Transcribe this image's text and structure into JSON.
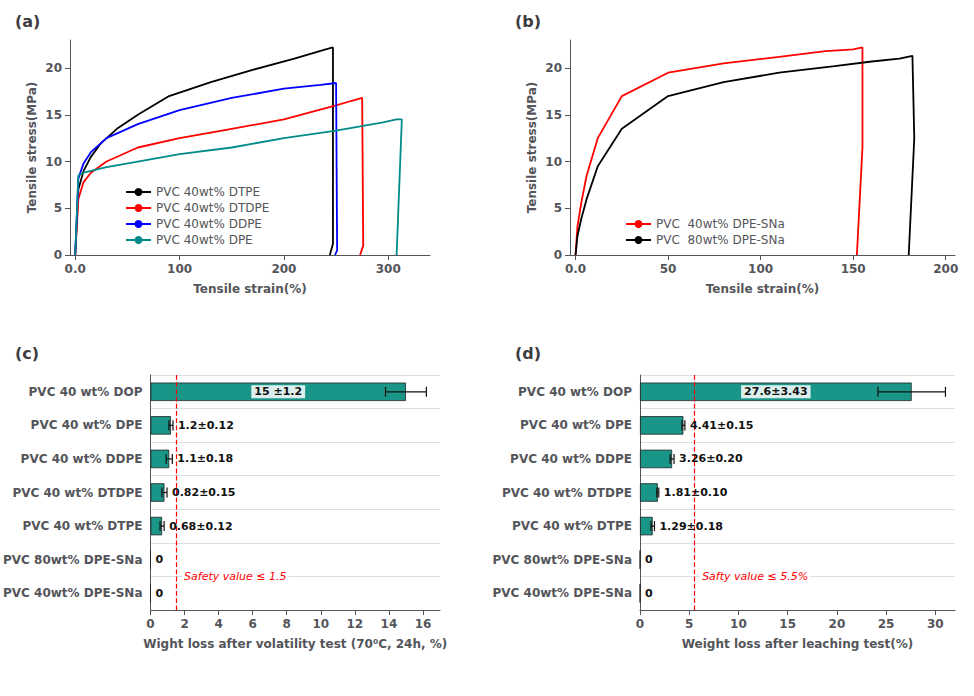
{
  "chart_data": [
    {
      "type": "line",
      "title": "(a)",
      "xlabel": "Tensile strain(%)",
      "ylabel": "Tensile stress(MPa)",
      "series": [
        {
          "name": "PVC 40wt% DTPE",
          "color": "black",
          "x": [
            0,
            3,
            8,
            15,
            25,
            40,
            60,
            90,
            130,
            170,
            210,
            240,
            247,
            247,
            244
          ],
          "values": [
            0,
            7.0,
            9.0,
            10.5,
            12.0,
            13.5,
            15.0,
            17.0,
            18.5,
            19.8,
            21.0,
            22.0,
            22.2,
            1.2,
            0
          ]
        },
        {
          "name": "PVC 40wt% DTDPE",
          "color": "red",
          "x": [
            0,
            3,
            8,
            15,
            30,
            60,
            100,
            150,
            200,
            250,
            265,
            275,
            276,
            273
          ],
          "values": [
            0,
            6.0,
            7.8,
            8.8,
            10.0,
            11.5,
            12.5,
            13.5,
            14.5,
            16.0,
            16.5,
            16.8,
            1.0,
            0
          ]
        },
        {
          "name": "PVC 40wt% DDPE",
          "color": "blue",
          "x": [
            0,
            3,
            8,
            15,
            30,
            60,
            100,
            150,
            200,
            235,
            250,
            251,
            249
          ],
          "values": [
            0,
            8.2,
            9.8,
            11.0,
            12.5,
            14.0,
            15.5,
            16.8,
            17.8,
            18.2,
            18.4,
            0.5,
            0
          ]
        },
        {
          "name": "PVC 40wt% DPE",
          "color": "#008B8B",
          "x": [
            0,
            3,
            8,
            15,
            30,
            60,
            100,
            150,
            200,
            250,
            295,
            308,
            313,
            308
          ],
          "values": [
            0,
            8.5,
            8.8,
            9.0,
            9.4,
            10.0,
            10.8,
            11.5,
            12.5,
            13.3,
            14.2,
            14.5,
            14.5,
            0
          ]
        }
      ],
      "xlim": [
        -5,
        340
      ],
      "xticks": [
        {
          "value": 0,
          "label": "0.0"
        },
        100,
        200,
        300
      ],
      "ylim": [
        0,
        23
      ],
      "yticks": [
        0,
        5,
        10,
        15,
        20
      ],
      "legend": "lower left",
      "grid": false
    },
    {
      "type": "line",
      "title": "(b)",
      "xlabel": "Tensile strain(%)",
      "ylabel": "Tensile stress(MPa)",
      "series": [
        {
          "name": "PVC  40wt% DPE-SNa",
          "color": "red",
          "x": [
            0,
            1,
            3,
            6,
            12,
            25,
            50,
            80,
            110,
            135,
            150,
            155,
            155,
            152
          ],
          "values": [
            0,
            3.0,
            5.5,
            8.5,
            12.5,
            17.0,
            19.5,
            20.5,
            21.2,
            21.8,
            22.0,
            22.2,
            11.5,
            0
          ]
        },
        {
          "name": "PVC  80wt% DPE-SNa",
          "color": "black",
          "x": [
            0,
            1,
            3,
            6,
            12,
            25,
            50,
            80,
            110,
            140,
            160,
            175,
            182,
            183,
            180
          ],
          "values": [
            0,
            2.0,
            3.8,
            6.0,
            9.5,
            13.5,
            17.0,
            18.5,
            19.5,
            20.2,
            20.7,
            21.0,
            21.3,
            12.5,
            0
          ]
        }
      ],
      "xlim": [
        -3,
        205
      ],
      "xticks": [
        {
          "value": 0,
          "label": "0.0"
        },
        50,
        100,
        150,
        200
      ],
      "ylim": [
        0,
        23
      ],
      "yticks": [
        0,
        5,
        10,
        15,
        20
      ],
      "legend": "lower left",
      "grid": false
    },
    {
      "type": "bar",
      "orientation": "horizontal",
      "title": "(c)",
      "xlabel": "Wight loss after volatility test (70⁰C, 24h, %)",
      "categories": [
        "PVC 40 wt% DOP",
        "PVC 40 wt% DPE",
        "PVC 40 wt% DDPE",
        "PVC 40 wt% DTDPE",
        "PVC 40 wt% DTPE",
        "PVC 80wt% DPE-SNa",
        "PVC 40wt% DPE-SNa"
      ],
      "values": [
        15.0,
        1.2,
        1.1,
        0.82,
        0.68,
        0.0,
        0.0
      ],
      "errors": [
        1.2,
        0.12,
        0.18,
        0.15,
        0.12,
        0.0,
        0.0
      ],
      "value_labels": [
        "15 ±1.2",
        "1.2±0.12",
        "1.1±0.18",
        "0.82±0.15",
        "0.68±0.12",
        "0",
        "0"
      ],
      "data_labels": true,
      "color": "#1a9688",
      "xlim": [
        0,
        17
      ],
      "xticks": [
        0,
        2,
        4,
        6,
        8,
        10,
        12,
        14,
        16
      ],
      "grid": true,
      "annotations": [
        {
          "x": 1.5,
          "text": "Safety value ≤ 1.5",
          "color": "red",
          "line_style": "dashed"
        }
      ]
    },
    {
      "type": "bar",
      "orientation": "horizontal",
      "title": "(d)",
      "xlabel": "Weight loss after leaching test(%)",
      "categories": [
        "PVC 40 wt% DOP",
        "PVC 40 wt% DPE",
        "PVC 40 wt% DDPE",
        "PVC 40 wt% DTDPE",
        "PVC 40 wt% DTPE",
        "PVC 80wt% DPE-SNa",
        "PVC 40wt% DPE-SNa"
      ],
      "values": [
        27.6,
        4.41,
        3.26,
        1.81,
        1.29,
        0.0,
        0.0
      ],
      "errors": [
        3.43,
        0.15,
        0.2,
        0.1,
        0.18,
        0.0,
        0.0
      ],
      "value_labels": [
        "27.6±3.43",
        "4.41±0.15",
        "3.26±0.20",
        "1.81±0.10",
        "1.29±0.18",
        "0",
        "0"
      ],
      "data_labels": true,
      "color": "#1a9688",
      "xlim": [
        0,
        32
      ],
      "xticks": [
        0,
        5,
        10,
        15,
        20,
        25,
        30
      ],
      "grid": true,
      "annotations": [
        {
          "x": 5.5,
          "text": "Safty value ≤ 5.5%",
          "color": "red",
          "line_style": "dashed"
        }
      ]
    }
  ]
}
